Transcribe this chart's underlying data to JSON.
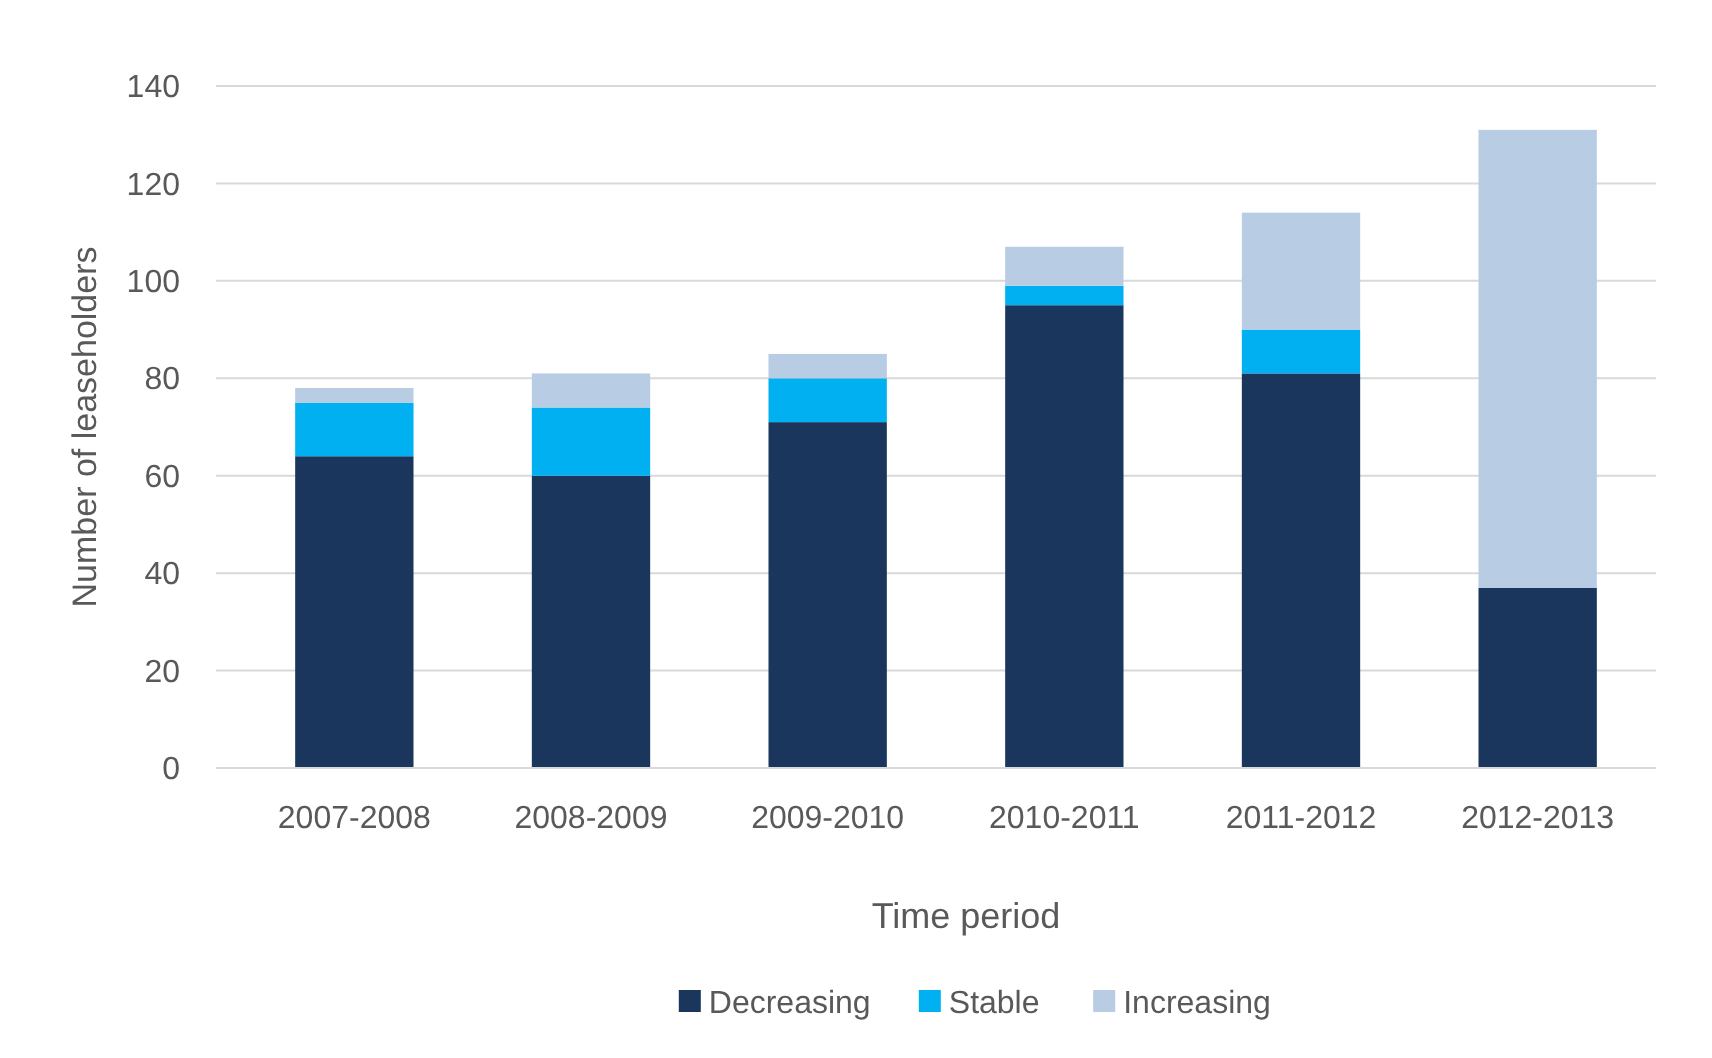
{
  "chart_data": {
    "type": "bar",
    "stacked": true,
    "xlabel": "Time period",
    "ylabel": "Number of leaseholders",
    "categories": [
      "2007-2008",
      "2008-2009",
      "2009-2010",
      "2010-2011",
      "2011-2012",
      "2012-2013"
    ],
    "series": [
      {
        "name": "Decreasing",
        "color": "#1b365d",
        "values": [
          64,
          60,
          71,
          95,
          81,
          37
        ]
      },
      {
        "name": "Stable",
        "color": "#00b0f0",
        "values": [
          11,
          14,
          9,
          4,
          9,
          0
        ]
      },
      {
        "name": "Increasing",
        "color": "#b8cce4",
        "values": [
          3,
          7,
          5,
          8,
          24,
          94
        ]
      }
    ],
    "ylim": [
      0,
      140
    ],
    "yticks": [
      0,
      20,
      40,
      60,
      80,
      100,
      120,
      140
    ],
    "grid": "y",
    "legend": "bottom"
  }
}
